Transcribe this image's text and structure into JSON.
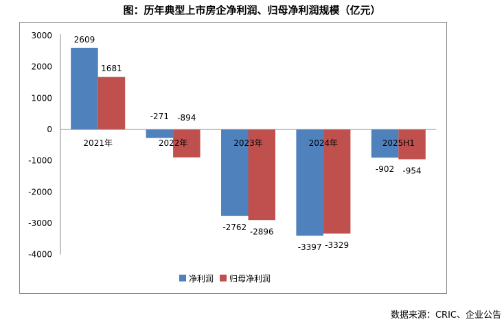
{
  "chart_data": {
    "type": "bar",
    "title": "图：历年典型上市房企净利润、归母净利润规模（亿元）",
    "categories": [
      "2021年",
      "2022年",
      "2023年",
      "2024年",
      "2025H1"
    ],
    "series": [
      {
        "name": "净利润",
        "color": "#4F81BD",
        "values": [
          2609,
          -271,
          -2762,
          -3397,
          -902
        ]
      },
      {
        "name": "归母净利润",
        "color": "#C0504D",
        "values": [
          1681,
          -894,
          -2896,
          -3329,
          -954
        ]
      }
    ],
    "ylim": [
      -4000,
      3000
    ],
    "yticks": [
      3000,
      2000,
      1000,
      0,
      -1000,
      -2000,
      -3000,
      -4000
    ],
    "grid": false,
    "legend": "bottom",
    "xlabel": "",
    "ylabel": ""
  },
  "source": "数据来源：CRIC、企业公告"
}
